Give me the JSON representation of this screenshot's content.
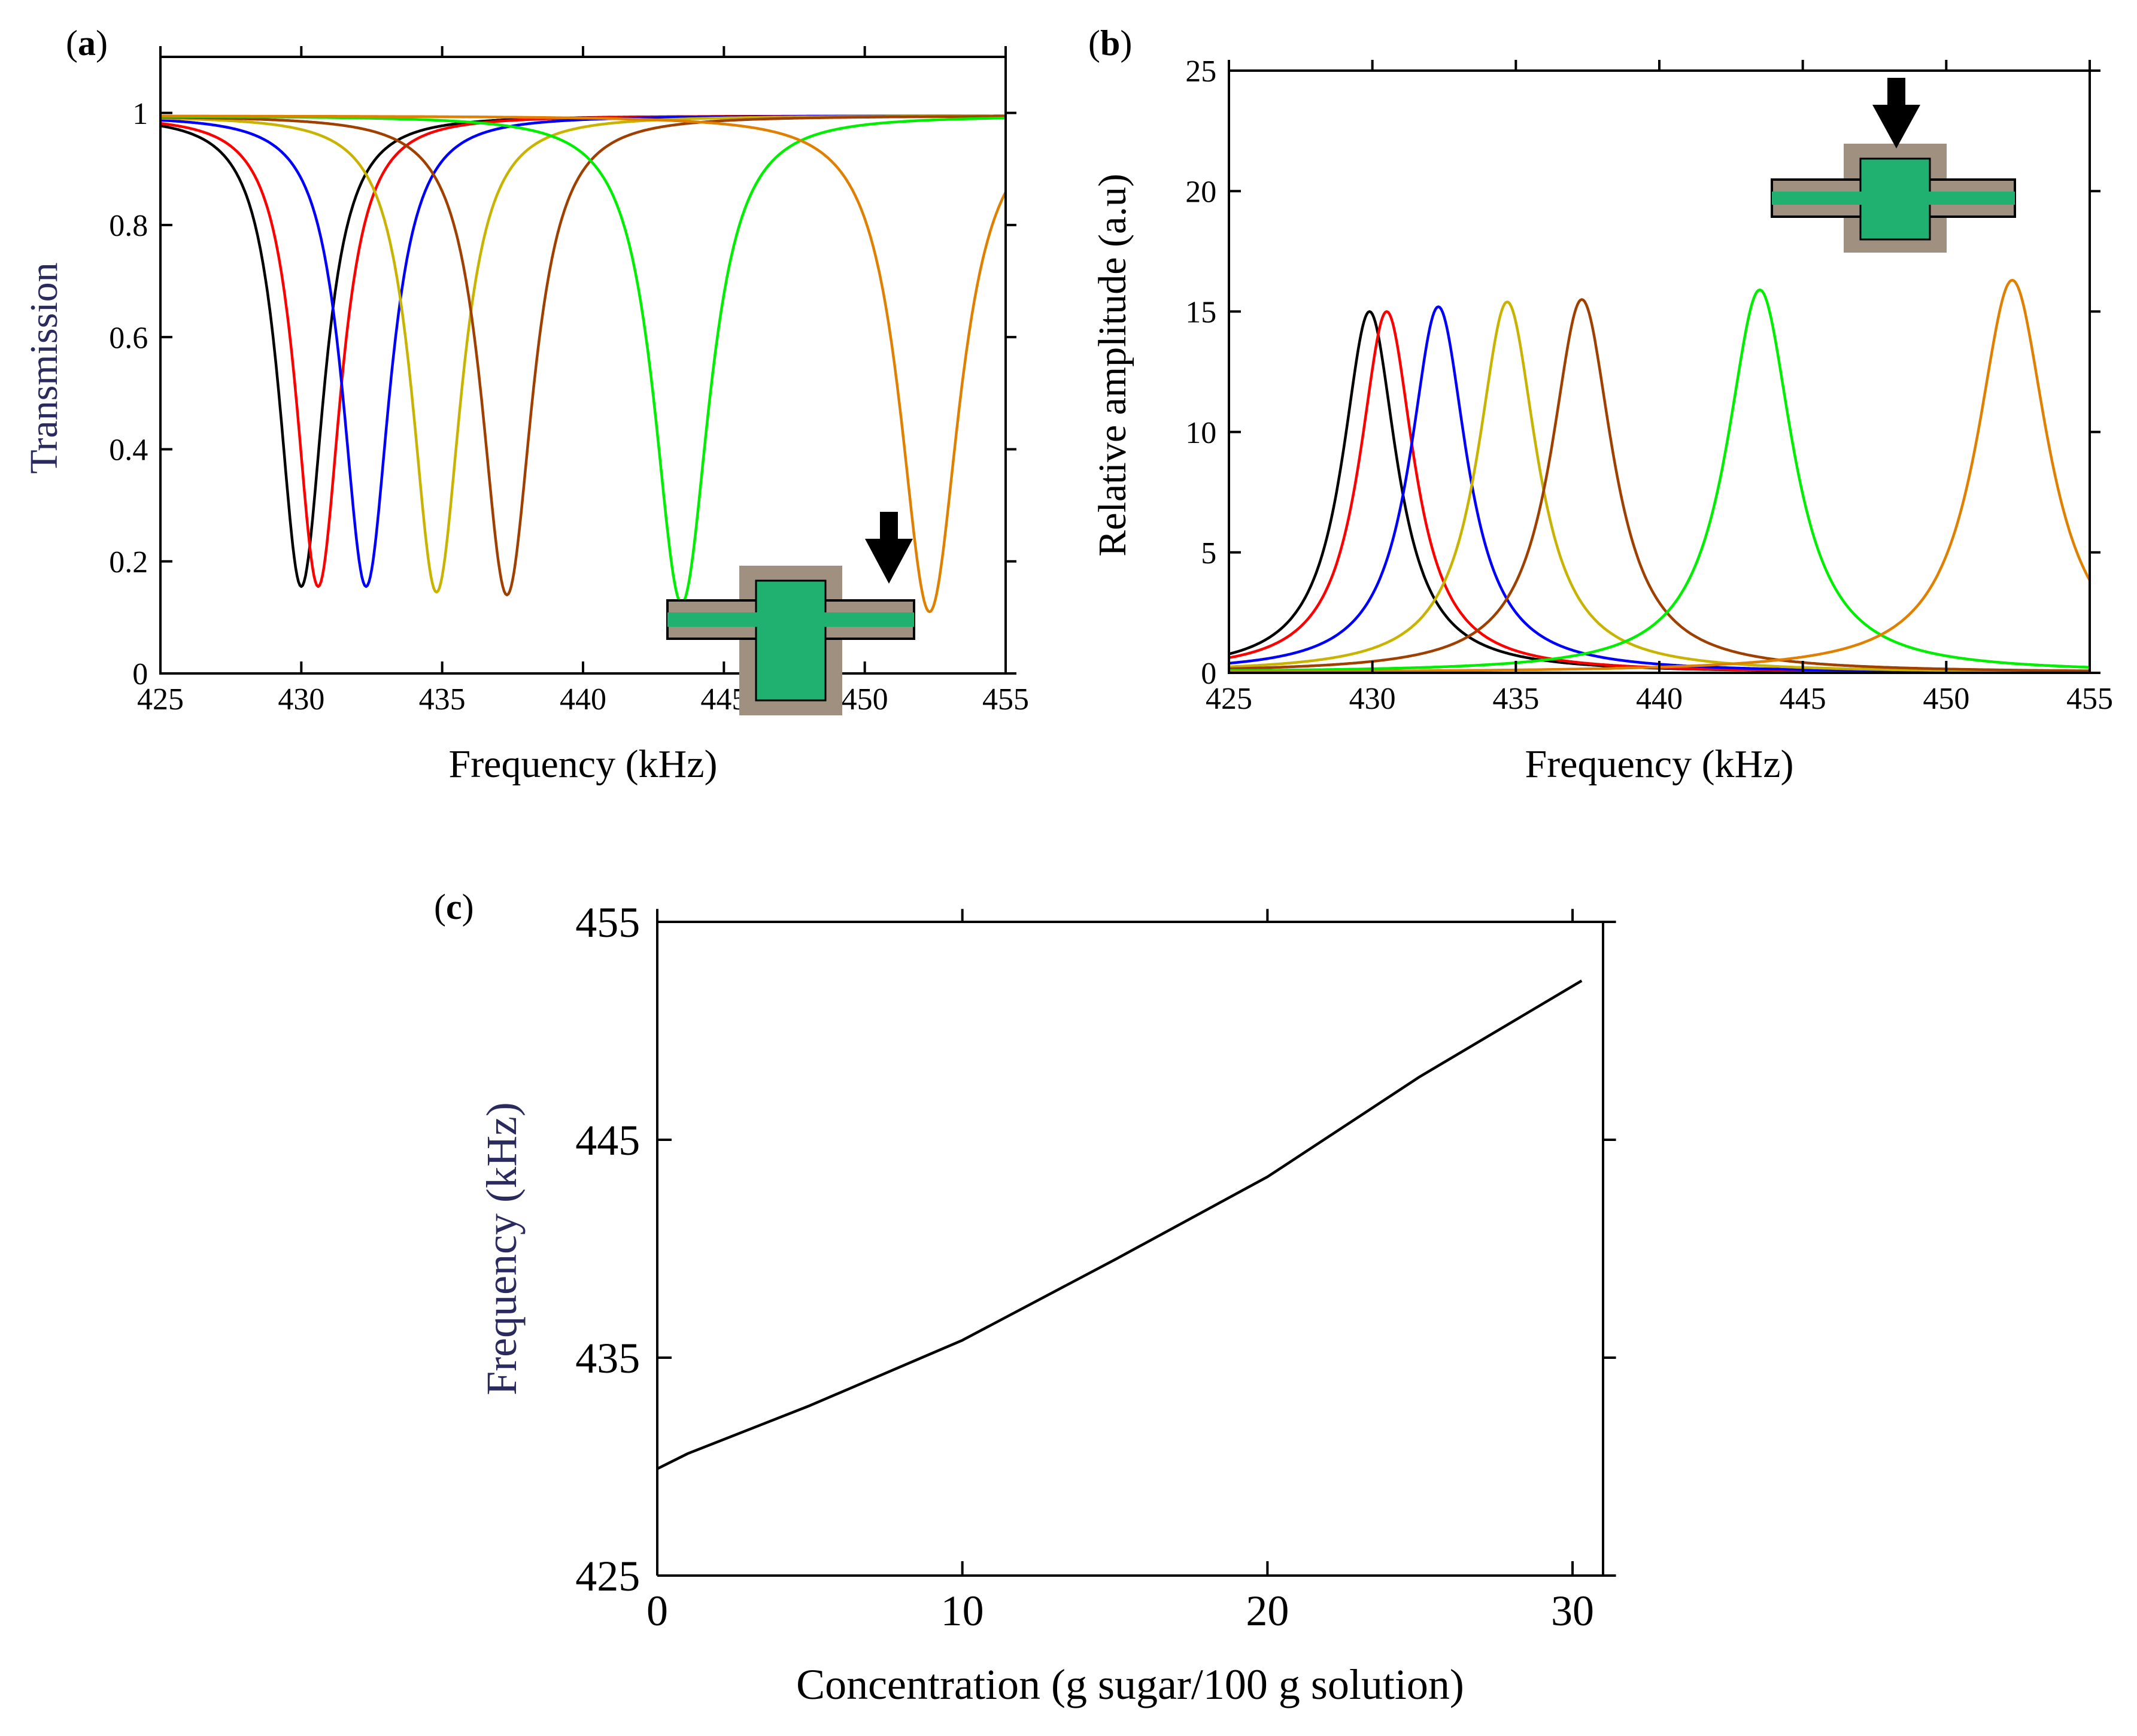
{
  "chart_data": [
    {
      "panel": "(a)",
      "panel_label_letter": "a",
      "type": "line",
      "xlabel": "Frequency (kHz)",
      "ylabel": "Transmission",
      "xlim": [
        425,
        455
      ],
      "ylim": [
        0,
        1.1
      ],
      "xticks": [
        "425",
        "430",
        "435",
        "440",
        "445",
        "450",
        "455"
      ],
      "yticks": [
        "0",
        "0.2",
        "0.4",
        "0.6",
        "0.8",
        "1"
      ],
      "series": [
        {
          "name": "black",
          "color": "#000000",
          "f0": 430.0,
          "min": 0.155,
          "width": 2.2
        },
        {
          "name": "red",
          "color": "#ff0000",
          "f0": 430.6,
          "min": 0.155,
          "width": 2.2
        },
        {
          "name": "blue",
          "color": "#0000ff",
          "f0": 432.3,
          "min": 0.155,
          "width": 2.3
        },
        {
          "name": "yellow",
          "color": "#c8b400",
          "f0": 434.8,
          "min": 0.145,
          "width": 2.4
        },
        {
          "name": "brown",
          "color": "#a04000",
          "f0": 437.3,
          "min": 0.14,
          "width": 2.5
        },
        {
          "name": "green",
          "color": "#00ee00",
          "f0": 443.5,
          "min": 0.125,
          "width": 2.7
        },
        {
          "name": "orange",
          "color": "#e08000",
          "f0": 452.3,
          "min": 0.11,
          "width": 2.9
        }
      ],
      "inset_icon": "waveguide-cross-arrow-icon"
    },
    {
      "panel": "(b)",
      "panel_label_letter": "b",
      "type": "line",
      "xlabel": "Frequency (kHz)",
      "ylabel": "Relative amplitude (a.u)",
      "xlim": [
        425,
        455
      ],
      "ylim": [
        0,
        25
      ],
      "xticks": [
        "425",
        "430",
        "435",
        "440",
        "445",
        "450",
        "455"
      ],
      "yticks": [
        "0",
        "5",
        "10",
        "15",
        "20",
        "25"
      ],
      "series": [
        {
          "name": "black",
          "color": "#000000",
          "f0": 429.9,
          "peak": 15.0,
          "width": 1.15
        },
        {
          "name": "red",
          "color": "#ff0000",
          "f0": 430.5,
          "peak": 15.0,
          "width": 1.15
        },
        {
          "name": "blue",
          "color": "#0000ff",
          "f0": 432.3,
          "peak": 15.2,
          "width": 1.2
        },
        {
          "name": "yellow",
          "color": "#c8b400",
          "f0": 434.7,
          "peak": 15.4,
          "width": 1.25
        },
        {
          "name": "brown",
          "color": "#a04000",
          "f0": 437.3,
          "peak": 15.5,
          "width": 1.3
        },
        {
          "name": "green",
          "color": "#00ee00",
          "f0": 443.5,
          "peak": 15.9,
          "width": 1.4
        },
        {
          "name": "orange",
          "color": "#e08000",
          "f0": 452.3,
          "peak": 16.3,
          "width": 1.5
        }
      ],
      "inset_icon": "waveguide-cross-arrow-icon"
    },
    {
      "panel": "(c)",
      "panel_label_letter": "c",
      "type": "line",
      "xlabel": "Concentration (g sugar/100 g solution)",
      "ylabel": "Frequency (kHz)",
      "xlim": [
        0,
        31
      ],
      "ylim": [
        425,
        455
      ],
      "xticks": [
        "0",
        "10",
        "20",
        "30"
      ],
      "yticks": [
        "425",
        "435",
        "445",
        "455"
      ],
      "series": [
        {
          "name": "frequency",
          "color": "#000000",
          "x": [
            0,
            1,
            5,
            10,
            15,
            20,
            25,
            30.3
          ],
          "y": [
            429.9,
            430.6,
            432.8,
            435.8,
            439.5,
            443.3,
            447.9,
            452.3
          ]
        }
      ]
    }
  ]
}
